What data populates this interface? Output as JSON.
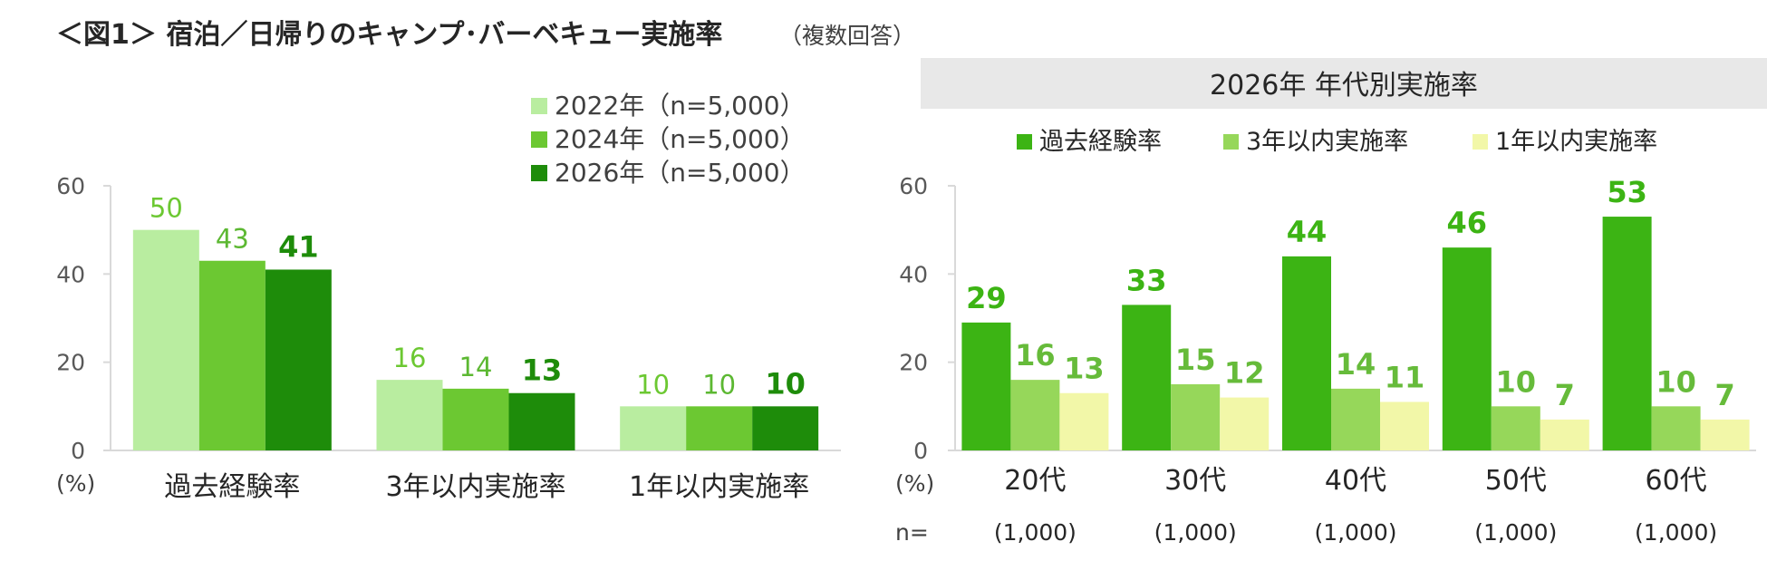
{
  "page": {
    "title": "＜図1＞ 宿泊／日帰りのキャンプ･バーベキュー実施率",
    "title_note": "（複数回答）"
  },
  "colors": {
    "y2022": "#b9eda0",
    "y2024": "#6cc832",
    "y2026": "#1e8c0a",
    "past": "#3cb414",
    "within3": "#96d75a",
    "within1": "#f2f7a8",
    "text": "#404040",
    "axis": "#d9d9d9",
    "band": "#e8e8e8"
  },
  "chart_data": [
    {
      "type": "bar",
      "categories": [
        "過去経験率",
        "3年以内実施率",
        "1年以内実施率"
      ],
      "series": [
        {
          "name": "2022年（n=5,000）",
          "values": [
            50,
            16,
            10
          ]
        },
        {
          "name": "2024年（n=5,000）",
          "values": [
            43,
            14,
            10
          ]
        },
        {
          "name": "2026年（n=5,000）",
          "values": [
            41,
            13,
            10
          ]
        }
      ],
      "ylim": [
        0,
        60
      ],
      "yticks": [
        0,
        20,
        40,
        60
      ],
      "yunit": "(%)",
      "legend": "top-right",
      "grid": false
    },
    {
      "type": "bar",
      "title": "2026年 年代別実施率",
      "categories": [
        "20代",
        "30代",
        "40代",
        "50代",
        "60代"
      ],
      "n_label": "n=",
      "n_values": [
        "(1,000)",
        "(1,000)",
        "(1,000)",
        "(1,000)",
        "(1,000)"
      ],
      "series": [
        {
          "name": "過去経験率",
          "values": [
            29,
            33,
            44,
            46,
            53
          ]
        },
        {
          "name": "3年以内実施率",
          "values": [
            16,
            15,
            14,
            10,
            10
          ]
        },
        {
          "name": "1年以内実施率",
          "values": [
            13,
            12,
            11,
            7,
            7
          ]
        }
      ],
      "ylim": [
        0,
        60
      ],
      "yticks": [
        0,
        20,
        40,
        60
      ],
      "yunit": "(%)",
      "legend": "top",
      "grid": false
    }
  ]
}
